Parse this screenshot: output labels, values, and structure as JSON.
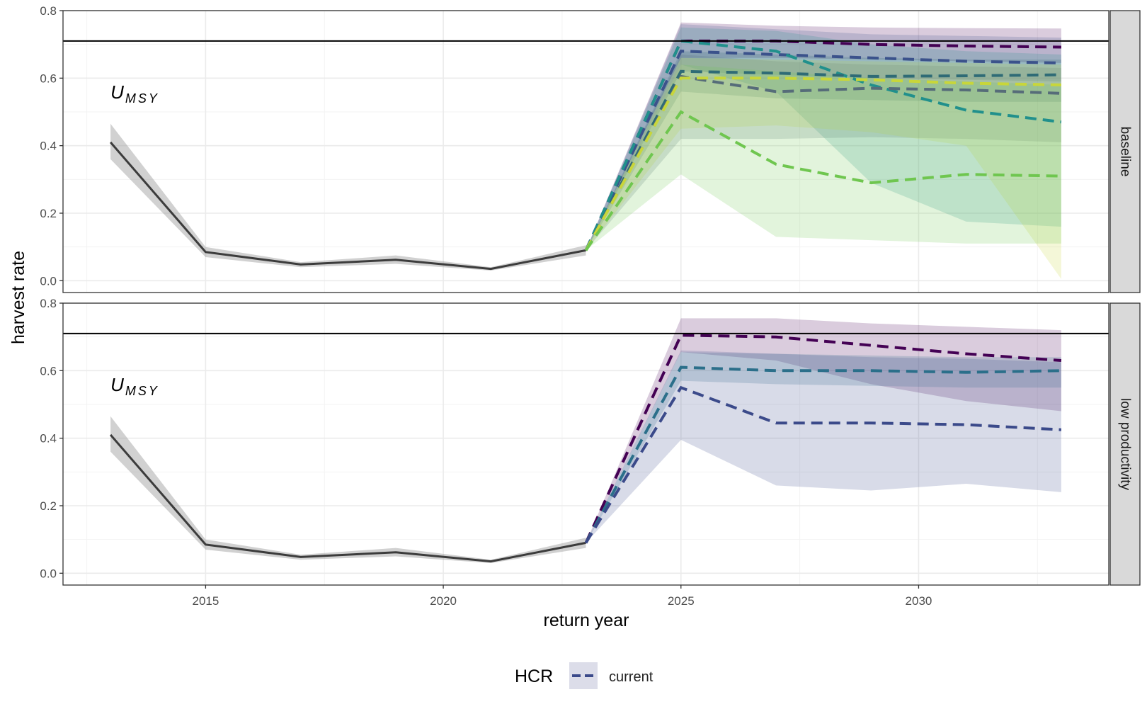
{
  "chart_data": {
    "type": "line",
    "xlabel": "return year",
    "ylabel": "harvest rate",
    "xlim": [
      2012,
      2034
    ],
    "ylim": [
      -0.035,
      0.8
    ],
    "x_ticks": [
      2015,
      2020,
      2025,
      2030
    ],
    "y_ticks": [
      0.0,
      0.2,
      0.4,
      0.6,
      0.8
    ],
    "y_tick_labels": [
      "0.0",
      "0.2",
      "0.4",
      "0.6",
      "0.8"
    ],
    "grid": true,
    "reference_line": {
      "value": 0.71,
      "label_main": "U",
      "label_sub": "MSY"
    },
    "legend": {
      "title": "HCR",
      "position": "bottom",
      "entries": [
        {
          "label": "current",
          "color": "#3b4a8a"
        }
      ]
    },
    "panels": [
      {
        "strip": "baseline",
        "historical": {
          "x": [
            2013,
            2015,
            2017,
            2019,
            2021,
            2023
          ],
          "y": [
            0.41,
            0.085,
            0.048,
            0.062,
            0.035,
            0.09
          ],
          "lo": [
            0.36,
            0.07,
            0.04,
            0.05,
            0.03,
            0.075
          ],
          "hi": [
            0.465,
            0.1,
            0.055,
            0.075,
            0.04,
            0.105
          ]
        },
        "projections": [
          {
            "color": "#440154",
            "x": [
              2023,
              2025,
              2027,
              2029,
              2031,
              2033
            ],
            "y": [
              0.09,
              0.71,
              0.71,
              0.7,
              0.695,
              0.692
            ],
            "lo": [
              0.09,
              0.66,
              0.66,
              0.655,
              0.65,
              0.645
            ],
            "hi": [
              0.09,
              0.765,
              0.755,
              0.75,
              0.748,
              0.747
            ]
          },
          {
            "color": "#3b528b",
            "x": [
              2023,
              2025,
              2027,
              2029,
              2031,
              2033
            ],
            "y": [
              0.09,
              0.68,
              0.67,
              0.66,
              0.65,
              0.645
            ],
            "lo": [
              0.09,
              0.62,
              0.61,
              0.6,
              0.595,
              0.59
            ],
            "hi": [
              0.09,
              0.76,
              0.745,
              0.73,
              0.725,
              0.72
            ]
          },
          {
            "color": "#21908c",
            "x": [
              2023,
              2025,
              2027,
              2029,
              2031,
              2033
            ],
            "y": [
              0.09,
              0.71,
              0.68,
              0.58,
              0.505,
              0.47
            ],
            "lo": [
              0.09,
              0.64,
              0.56,
              0.29,
              0.175,
              0.16
            ],
            "hi": [
              0.09,
              0.75,
              0.74,
              0.7,
              0.68,
              0.67
            ]
          },
          {
            "color": "#2f6b76",
            "x": [
              2023,
              2025,
              2027,
              2029,
              2031,
              2033
            ],
            "y": [
              0.09,
              0.62,
              0.615,
              0.605,
              0.607,
              0.61
            ],
            "lo": [
              0.09,
              0.56,
              0.54,
              0.535,
              0.53,
              0.53
            ],
            "hi": [
              0.09,
              0.68,
              0.67,
              0.66,
              0.655,
              0.655
            ]
          },
          {
            "color": "#566c79",
            "x": [
              2023,
              2025,
              2027,
              2029,
              2031,
              2033
            ],
            "y": [
              0.09,
              0.605,
              0.56,
              0.57,
              0.565,
              0.555
            ],
            "lo": [
              0.09,
              0.42,
              0.42,
              0.425,
              0.42,
              0.41
            ],
            "hi": [
              0.09,
              0.67,
              0.65,
              0.64,
              0.635,
              0.63
            ]
          },
          {
            "color": "#c8d63a",
            "x": [
              2023,
              2025,
              2027,
              2029,
              2031,
              2033
            ],
            "y": [
              0.09,
              0.6,
              0.6,
              0.595,
              0.585,
              0.58
            ],
            "lo": [
              0.09,
              0.45,
              0.46,
              0.44,
              0.4,
              0.005
            ],
            "hi": [
              0.09,
              0.66,
              0.655,
              0.65,
              0.645,
              0.64
            ]
          },
          {
            "color": "#6fc64f",
            "x": [
              2023,
              2025,
              2027,
              2029,
              2031,
              2033
            ],
            "y": [
              0.09,
              0.5,
              0.345,
              0.29,
              0.315,
              0.31
            ],
            "lo": [
              0.09,
              0.315,
              0.13,
              0.12,
              0.11,
              0.11
            ],
            "hi": [
              0.09,
              0.64,
              0.62,
              0.6,
              0.59,
              0.58
            ]
          }
        ]
      },
      {
        "strip": "low productivity",
        "historical": {
          "x": [
            2013,
            2015,
            2017,
            2019,
            2021,
            2023
          ],
          "y": [
            0.41,
            0.085,
            0.048,
            0.062,
            0.035,
            0.09
          ],
          "lo": [
            0.36,
            0.07,
            0.04,
            0.05,
            0.03,
            0.075
          ],
          "hi": [
            0.465,
            0.1,
            0.055,
            0.075,
            0.04,
            0.105
          ]
        },
        "projections": [
          {
            "color": "#440154",
            "x": [
              2023,
              2025,
              2027,
              2029,
              2031,
              2033
            ],
            "y": [
              0.09,
              0.705,
              0.7,
              0.675,
              0.65,
              0.63
            ],
            "lo": [
              0.09,
              0.655,
              0.63,
              0.56,
              0.51,
              0.48
            ],
            "hi": [
              0.09,
              0.755,
              0.755,
              0.74,
              0.73,
              0.72
            ]
          },
          {
            "color": "#2b6f8a",
            "x": [
              2023,
              2025,
              2027,
              2029,
              2031,
              2033
            ],
            "y": [
              0.09,
              0.61,
              0.6,
              0.6,
              0.595,
              0.6
            ],
            "lo": [
              0.09,
              0.57,
              0.56,
              0.555,
              0.55,
              0.55
            ],
            "hi": [
              0.09,
              0.655,
              0.65,
              0.645,
              0.64,
              0.64
            ]
          },
          {
            "color": "#3b4a8a",
            "x": [
              2023,
              2025,
              2027,
              2029,
              2031,
              2033
            ],
            "y": [
              0.09,
              0.55,
              0.445,
              0.445,
              0.44,
              0.425
            ],
            "lo": [
              0.09,
              0.395,
              0.26,
              0.245,
              0.265,
              0.24
            ],
            "hi": [
              0.09,
              0.66,
              0.65,
              0.64,
              0.635,
              0.625
            ]
          }
        ]
      }
    ]
  }
}
